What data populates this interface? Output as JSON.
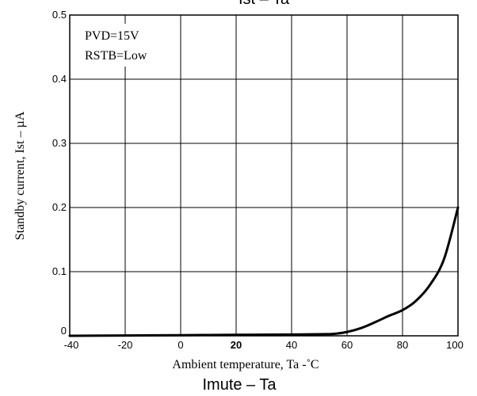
{
  "chart_data": {
    "type": "line",
    "top_title": "Ist  –  Ta",
    "caption": "Imute  –  Ta",
    "xlabel": "Ambient temperature, Ta  -˚C",
    "ylabel": "Standby current, Ist  –  µA",
    "xlim": [
      -40,
      100
    ],
    "ylim": [
      0,
      0.5
    ],
    "x_ticks": [
      -40,
      -20,
      0,
      20,
      40,
      60,
      80,
      100
    ],
    "x_tick_labels": [
      "-40",
      "-20",
      "0",
      "20",
      "40",
      "60",
      "80",
      "100"
    ],
    "y_ticks": [
      0,
      0.1,
      0.2,
      0.3,
      0.4,
      0.5
    ],
    "y_tick_labels": [
      "0",
      "0.1",
      "0.2",
      "0.3",
      "0.4",
      "0.5"
    ],
    "grid": true,
    "annotations": [
      "PVD=15V",
      "RSTB=Low"
    ],
    "series": [
      {
        "x": [
          -40,
          -20,
          0,
          20,
          40,
          50,
          55,
          60,
          65,
          70,
          75,
          80,
          85,
          90,
          95,
          100
        ],
        "y": [
          0.0,
          0.0005,
          0.001,
          0.0015,
          0.002,
          0.0025,
          0.003,
          0.006,
          0.012,
          0.021,
          0.031,
          0.04,
          0.055,
          0.08,
          0.12,
          0.2
        ]
      }
    ]
  }
}
